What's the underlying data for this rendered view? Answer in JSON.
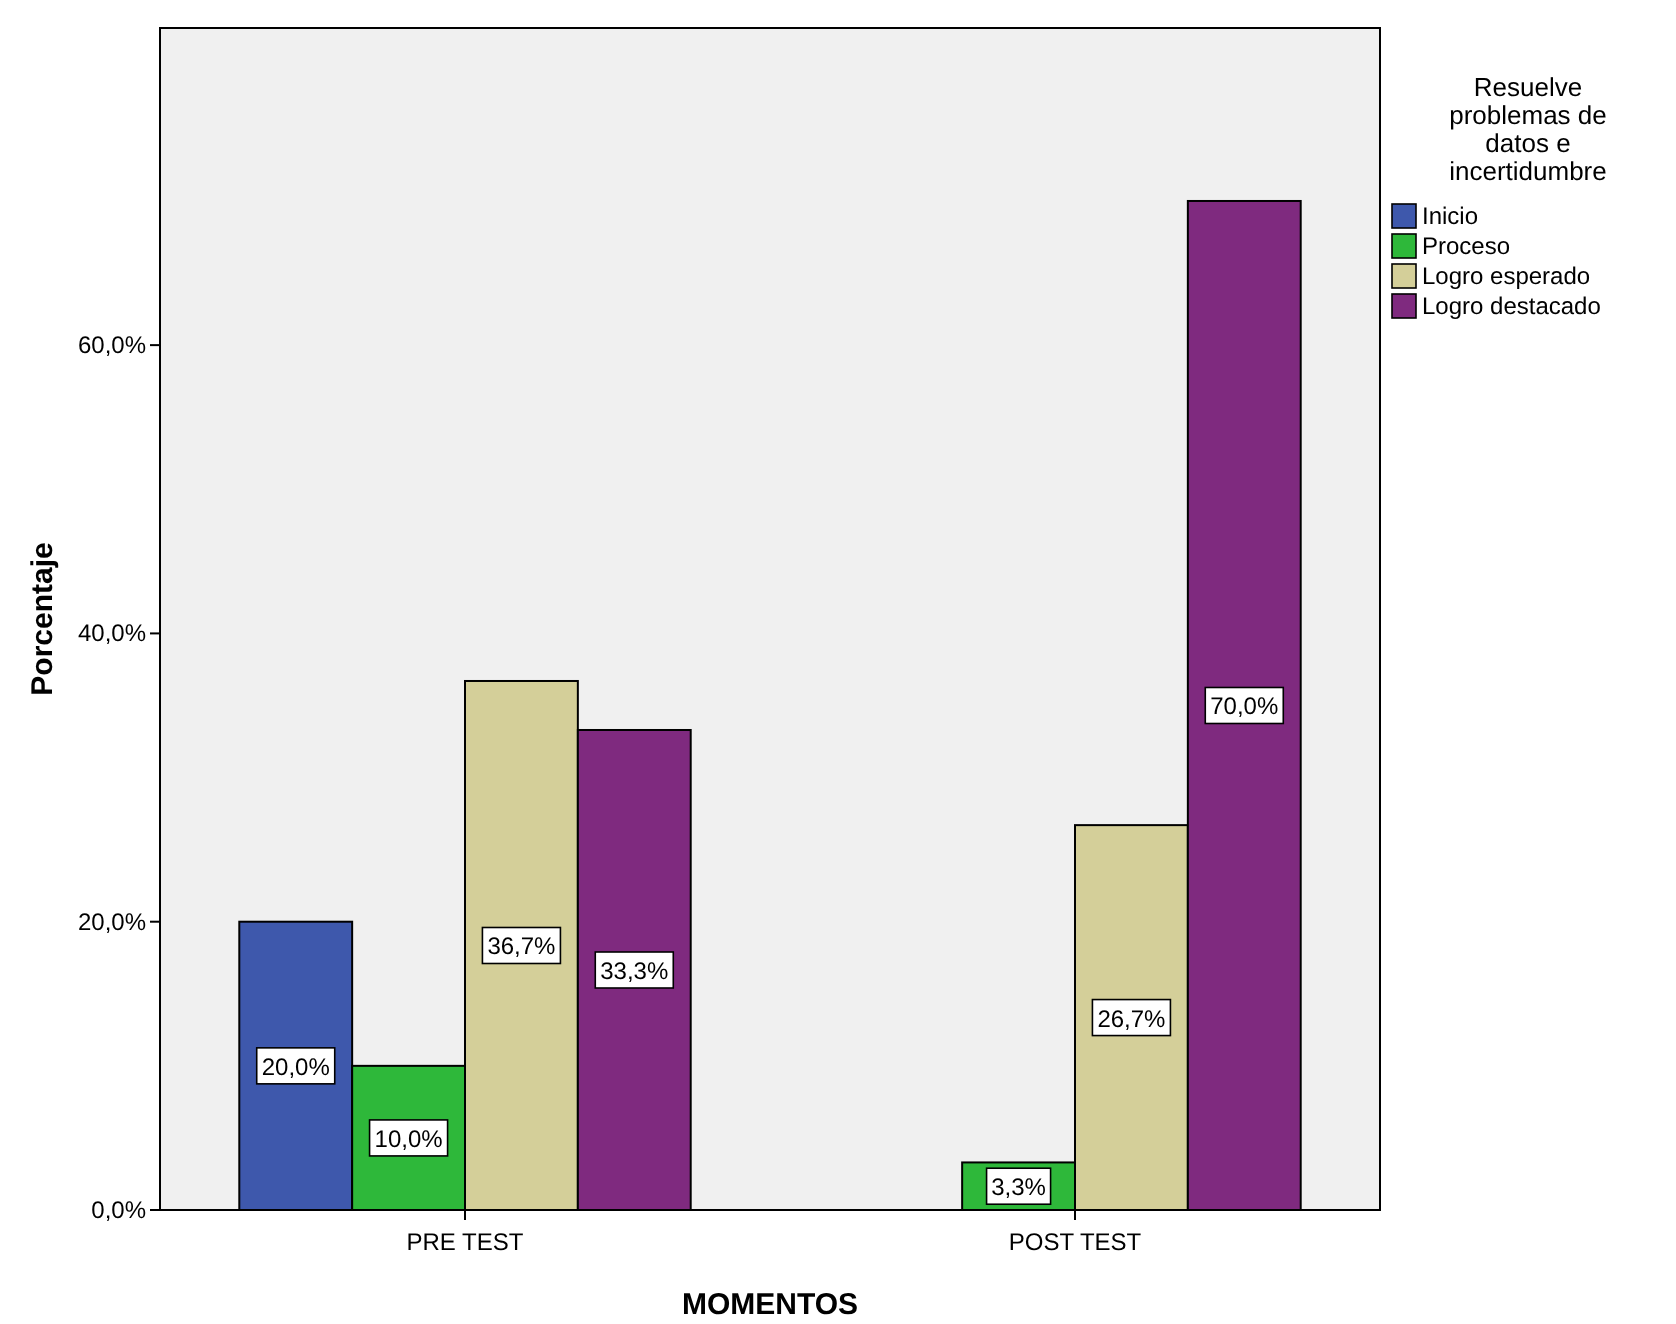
{
  "chart_data": {
    "type": "bar",
    "xlabel": "MOMENTOS",
    "ylabel": "Porcentaje",
    "legend_title": "Resuelve problemas de datos e incertidumbre",
    "categories": [
      "PRE TEST",
      "POST TEST"
    ],
    "series": [
      {
        "name": "Inicio",
        "color": "#3e58ac",
        "values": [
          20.0,
          0
        ],
        "value_labels": [
          "20,0%",
          null
        ]
      },
      {
        "name": "Proceso",
        "color": "#2eb83a",
        "values": [
          10.0,
          3.3
        ],
        "value_labels": [
          "10,0%",
          "3,3%"
        ]
      },
      {
        "name": "Logro esperado",
        "color": "#d4cf99",
        "values": [
          36.7,
          26.7
        ],
        "value_labels": [
          "36,7%",
          "26,7%"
        ]
      },
      {
        "name": "Logro destacado",
        "color": "#7f2a7f",
        "values": [
          33.3,
          70.0
        ],
        "value_labels": [
          "33,3%",
          "70,0%"
        ]
      }
    ],
    "ylim": [
      0,
      82
    ],
    "yticks": [
      {
        "value": 0,
        "label": "0,0%"
      },
      {
        "value": 20,
        "label": "20,0%"
      },
      {
        "value": 40,
        "label": "40,0%"
      },
      {
        "value": 60,
        "label": "60,0%"
      }
    ],
    "legend": "right"
  }
}
